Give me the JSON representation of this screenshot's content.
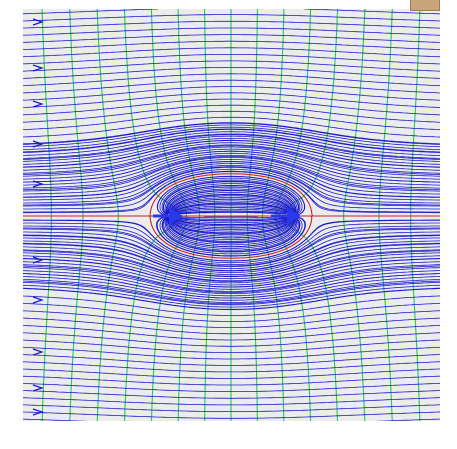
{
  "diagram": {
    "type": "flow-field",
    "description_kind": "source-sink streamlines with equipotential curves",
    "colors": {
      "background": "#ffffff",
      "plot_background": "#ececec",
      "streamline": "#1a1acc",
      "equipotential": "#22cc55",
      "dividing_streamline": "#cc2222",
      "axis_line": "#cc2222",
      "arrow": "#2a3ae8",
      "tab": "#c9a57a"
    },
    "elements": {
      "uniform_flow": "left-to-right",
      "source_marker": "arrow-icon",
      "sink_marker": "arrow-icon",
      "inflow_arrows": 10
    }
  }
}
